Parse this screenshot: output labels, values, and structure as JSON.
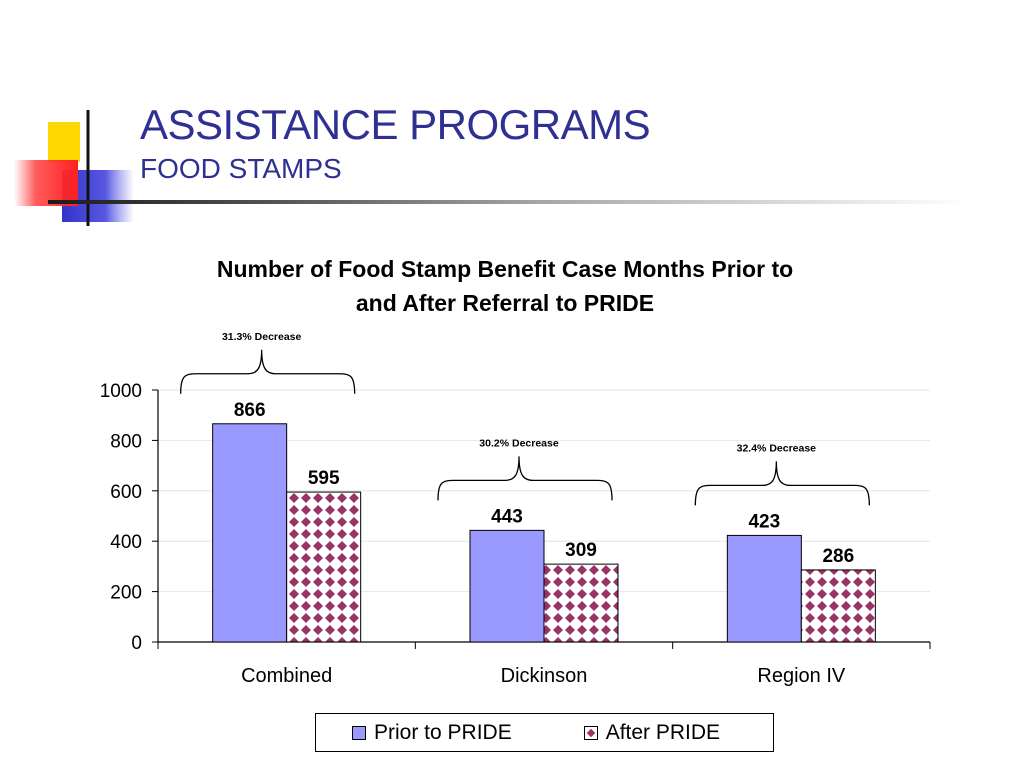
{
  "slide": {
    "title": "ASSISTANCE PROGRAMS",
    "subtitle": "FOOD STAMPS"
  },
  "colors": {
    "title": "#2E3192",
    "prior": "#9999FF",
    "after_pattern": "#993366",
    "deco_yellow": "#FFD700",
    "deco_blue": "#3333CC",
    "deco_red": "#FF3333"
  },
  "chart_data": {
    "type": "bar",
    "title": "Number of Food Stamp Benefit Case Months Prior to and After Referral to PRIDE",
    "title_lines": [
      "Number of Food Stamp Benefit Case Months Prior to",
      "and After Referral to PRIDE"
    ],
    "categories": [
      "Combined",
      "Dickinson",
      "Region IV"
    ],
    "series": [
      {
        "name": "Prior to PRIDE",
        "values": [
          866,
          443,
          423
        ]
      },
      {
        "name": "After PRIDE",
        "values": [
          595,
          309,
          286
        ]
      }
    ],
    "data_labels": [
      [
        "866",
        "443",
        "423"
      ],
      [
        "595",
        "309",
        "286"
      ]
    ],
    "annotations": [
      "31.3% Decrease",
      "30.2% Decrease",
      "32.4% Decrease"
    ],
    "ylim": [
      0,
      1000
    ],
    "yticks": [
      0,
      200,
      400,
      600,
      800,
      1000
    ],
    "grid": true,
    "legend": "bottom",
    "xlabel": "",
    "ylabel": ""
  }
}
